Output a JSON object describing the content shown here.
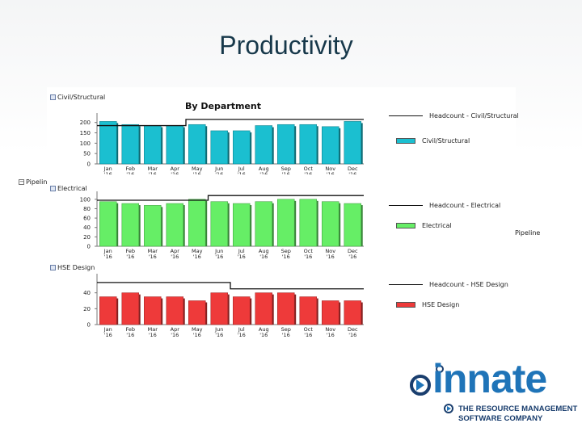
{
  "slide": {
    "title": "Productivity"
  },
  "labels": {
    "civil_panel": "Civil/Structural",
    "pipeline_left": "Pipelin",
    "electrical_panel": "Electrical",
    "hse_panel": "HSE Design",
    "pipeline_right": "Pipeline"
  },
  "legend": {
    "civil_headcount": "Headcount - Civil/Structural",
    "civil_series": "Civil/Structural",
    "elec_headcount": "Headcount - Electrical",
    "elec_series": "Electrical",
    "hse_headcount": "Headcount - HSE Design",
    "hse_series": "HSE Design"
  },
  "logo": {
    "word": "innate",
    "line1": "THE RESOURCE MANAGEMENT",
    "line2": "SOFTWARE COMPANY"
  },
  "colors": {
    "civil": "#1bbfd0",
    "electrical": "#66ee66",
    "hse": "#ee3a3a",
    "title": "#17384a",
    "brand": "#1f74b8"
  },
  "chart_data": [
    {
      "type": "bar",
      "title": "By Department",
      "categories": [
        "Jan '16",
        "Feb '16",
        "Mar '16",
        "Apr '16",
        "May '16",
        "Jun '16",
        "Jul '16",
        "Aug '16",
        "Sep '16",
        "Oct '16",
        "Nov '16",
        "Dec '16"
      ],
      "series": [
        {
          "name": "Civil/Structural",
          "kind": "bar",
          "values": [
            205,
            190,
            185,
            185,
            190,
            160,
            160,
            185,
            190,
            190,
            180,
            205
          ]
        },
        {
          "name": "Headcount - Civil/Structural",
          "kind": "step-line",
          "values": [
            185,
            185,
            185,
            185,
            215,
            215,
            215,
            215,
            215,
            215,
            215,
            215
          ]
        }
      ],
      "yticks": [
        0,
        50,
        100,
        150,
        200
      ],
      "ylim": [
        0,
        230
      ],
      "legend_position": "right"
    },
    {
      "type": "bar",
      "title": "",
      "categories": [
        "Jan '16",
        "Feb '16",
        "Mar '16",
        "Apr '16",
        "May '16",
        "Jun '16",
        "Jul '16",
        "Aug '16",
        "Sep '16",
        "Oct '16",
        "Nov '16",
        "Dec '16"
      ],
      "series": [
        {
          "name": "Electrical",
          "kind": "bar",
          "values": [
            95,
            91,
            87,
            91,
            100,
            95,
            91,
            95,
            100,
            100,
            95,
            91
          ]
        },
        {
          "name": "Headcount - Electrical",
          "kind": "step-line",
          "values": [
            98,
            98,
            98,
            98,
            98,
            108,
            108,
            108,
            108,
            108,
            108,
            108
          ]
        }
      ],
      "yticks": [
        0,
        20,
        40,
        60,
        80,
        100
      ],
      "ylim": [
        0,
        110
      ],
      "legend_position": "right"
    },
    {
      "type": "bar",
      "title": "",
      "categories": [
        "Jan '16",
        "Feb '16",
        "Mar '16",
        "Apr '16",
        "May '16",
        "Jun '16",
        "Jul '16",
        "Aug '16",
        "Sep '16",
        "Oct '16",
        "Nov '16",
        "Dec '16"
      ],
      "series": [
        {
          "name": "HSE Design",
          "kind": "bar",
          "values": [
            35,
            40,
            35,
            35,
            30,
            40,
            35,
            40,
            40,
            35,
            30,
            30
          ]
        },
        {
          "name": "Headcount - HSE Design",
          "kind": "step-line",
          "values": [
            53,
            53,
            53,
            53,
            53,
            53,
            45,
            45,
            45,
            45,
            45,
            45
          ]
        }
      ],
      "yticks": [
        0,
        20,
        40
      ],
      "ylim": [
        0,
        60
      ],
      "legend_position": "right"
    }
  ]
}
